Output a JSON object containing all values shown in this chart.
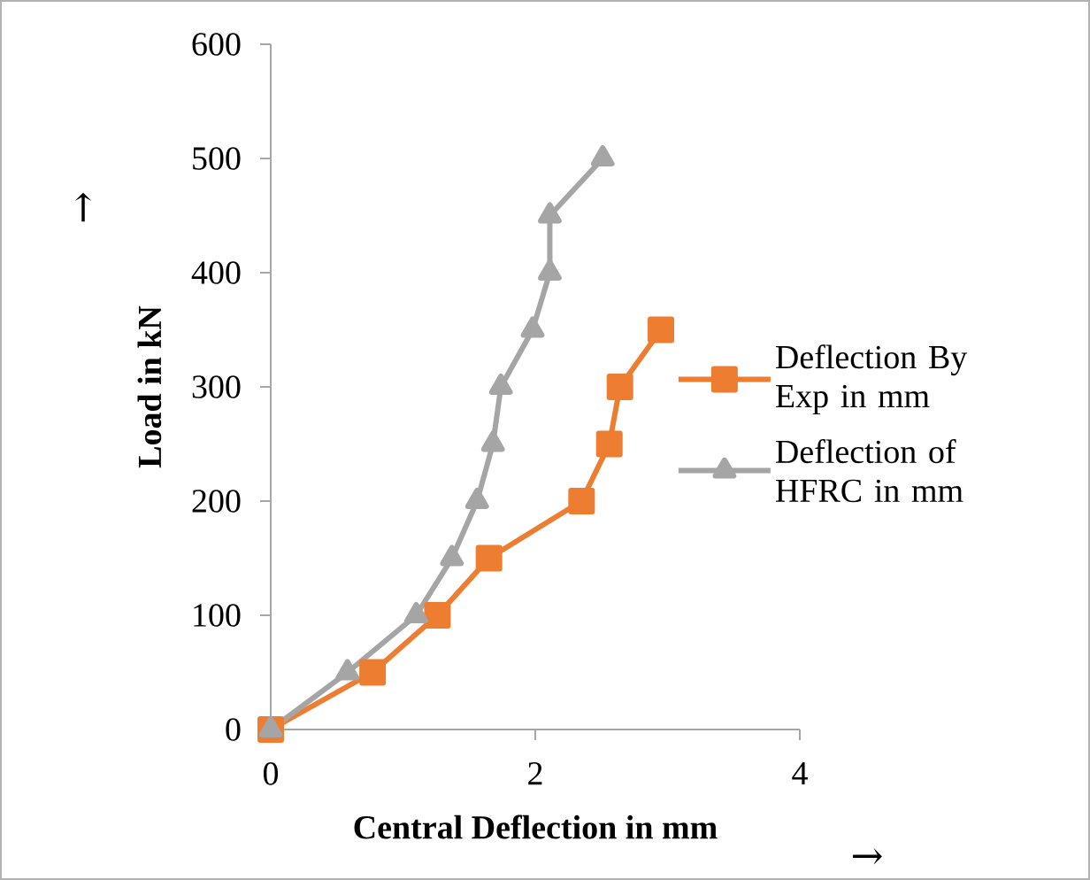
{
  "chart_data": {
    "type": "line",
    "xlabel": "Central Deflection in mm",
    "ylabel": "Load in kN",
    "xlim": [
      0,
      4
    ],
    "xticks": [
      0,
      2,
      4
    ],
    "ylim": [
      0,
      600
    ],
    "yticks": [
      0,
      100,
      200,
      300,
      400,
      500,
      600
    ],
    "legend": "right",
    "grid": false,
    "annotations": [
      "↑",
      "→"
    ],
    "series": [
      {
        "name": "Deflection By Exp in mm",
        "color": "#ed7d31",
        "marker": "square",
        "x": [
          0,
          0.77,
          1.26,
          1.65,
          2.35,
          2.56,
          2.64,
          2.95
        ],
        "values": [
          0,
          50,
          100,
          150,
          200,
          250,
          300,
          350
        ]
      },
      {
        "name": "Deflection of HFRC in mm",
        "color": "#a5a5a5",
        "marker": "triangle",
        "x": [
          0,
          0.58,
          1.1,
          1.37,
          1.56,
          1.68,
          1.74,
          1.98,
          2.11,
          2.11,
          2.51
        ],
        "values": [
          0,
          50,
          100,
          150,
          200,
          250,
          300,
          350,
          400,
          450,
          500
        ]
      }
    ]
  }
}
